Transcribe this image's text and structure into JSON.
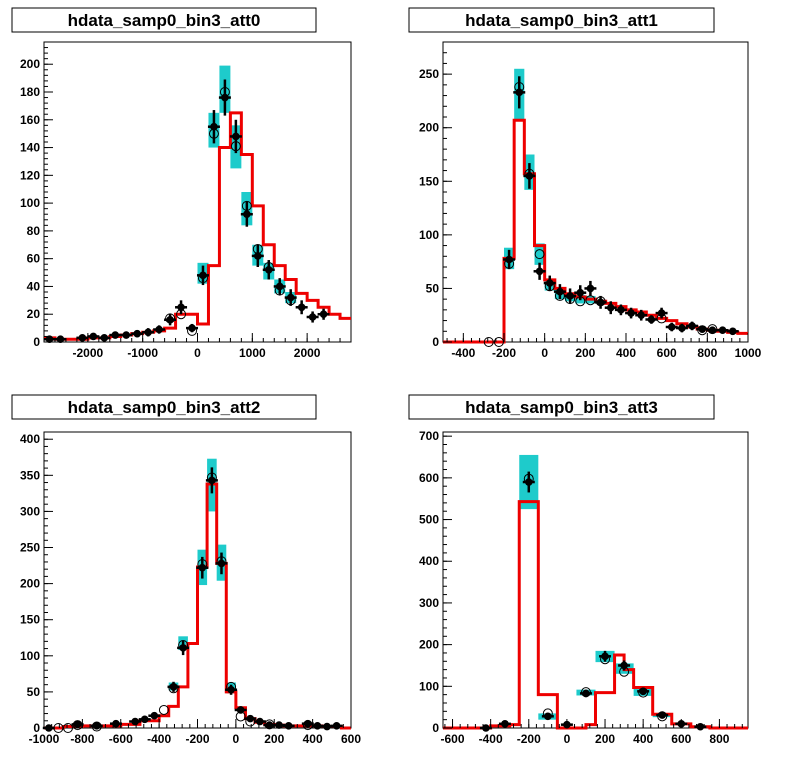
{
  "colors": {
    "band": "#1ecbcb",
    "model": "#ee0000",
    "data": "#000000",
    "frame": "#000000"
  },
  "chart_data": [
    {
      "type": "histogram",
      "title": "hdata_samp0_bin3_att0",
      "xlim": [
        -2800,
        2800
      ],
      "ylim": [
        0,
        216
      ],
      "xticks": [
        -2000,
        -1000,
        0,
        1000,
        2000
      ],
      "yticks": [
        0,
        20,
        40,
        60,
        80,
        100,
        120,
        140,
        160,
        180,
        200
      ],
      "model_edges": [
        -2800,
        -2600,
        -2400,
        -2200,
        -2000,
        -1800,
        -1600,
        -1400,
        -1200,
        -1000,
        -800,
        -600,
        -400,
        -200,
        0,
        200,
        400,
        600,
        800,
        1000,
        1200,
        1400,
        1600,
        1800,
        2000,
        2200,
        2400,
        2600,
        2800
      ],
      "model": [
        3,
        2,
        2,
        2,
        3,
        3,
        4,
        5,
        6,
        7,
        8,
        10,
        20,
        20,
        13,
        55,
        140,
        165,
        135,
        98,
        70,
        55,
        45,
        35,
        30,
        25,
        20,
        17
      ],
      "points": [
        {
          "x": -2700,
          "y": 2,
          "err": 1.5
        },
        {
          "x": -2500,
          "y": 2,
          "err": 1.5
        },
        {
          "x": -2100,
          "y": 3,
          "err": 1.5
        },
        {
          "x": -1900,
          "y": 4,
          "err": 2
        },
        {
          "x": -1700,
          "y": 3,
          "err": 2
        },
        {
          "x": -1500,
          "y": 5,
          "err": 2
        },
        {
          "x": -1300,
          "y": 5,
          "err": 2
        },
        {
          "x": -1100,
          "y": 6,
          "err": 2.5
        },
        {
          "x": -900,
          "y": 7,
          "err": 3
        },
        {
          "x": -700,
          "y": 9,
          "err": 3
        },
        {
          "x": -500,
          "y": 16,
          "err": 4
        },
        {
          "x": -300,
          "y": 25,
          "err": 5
        },
        {
          "x": -100,
          "y": 10,
          "err": 3
        },
        {
          "x": 100,
          "y": 48,
          "err": 7
        },
        {
          "x": 300,
          "y": 155,
          "err": 12
        },
        {
          "x": 500,
          "y": 176,
          "err": 13
        },
        {
          "x": 700,
          "y": 148,
          "err": 12
        },
        {
          "x": 900,
          "y": 92,
          "err": 9
        },
        {
          "x": 1100,
          "y": 62,
          "err": 8
        },
        {
          "x": 1300,
          "y": 52,
          "err": 7
        },
        {
          "x": 1500,
          "y": 40,
          "err": 6
        },
        {
          "x": 1700,
          "y": 32,
          "err": 6
        },
        {
          "x": 1900,
          "y": 25,
          "err": 5
        },
        {
          "x": 2100,
          "y": 18,
          "err": 4
        },
        {
          "x": 2300,
          "y": 20,
          "err": 4
        }
      ],
      "open_points": [
        {
          "x": -500,
          "y": 17
        },
        {
          "x": -300,
          "y": 20
        },
        {
          "x": -100,
          "y": 8
        },
        {
          "x": 100,
          "y": 46
        },
        {
          "x": 300,
          "y": 150
        },
        {
          "x": 500,
          "y": 180
        },
        {
          "x": 700,
          "y": 141
        },
        {
          "x": 900,
          "y": 98
        },
        {
          "x": 1100,
          "y": 67
        },
        {
          "x": 1300,
          "y": 54
        },
        {
          "x": 1500,
          "y": 37
        },
        {
          "x": 1700,
          "y": 30
        }
      ],
      "bands": [
        {
          "x0": 0,
          "x1": 200,
          "y0": 42,
          "y1": 57
        },
        {
          "x0": 200,
          "y0": 140,
          "x1": 400,
          "y1": 165
        },
        {
          "x0": 400,
          "x1": 600,
          "y0": 165,
          "y1": 199
        },
        {
          "x0": 600,
          "x1": 800,
          "y0": 125,
          "y1": 156
        },
        {
          "x0": 800,
          "x1": 1000,
          "y0": 84,
          "y1": 108
        },
        {
          "x0": 1000,
          "x1": 1200,
          "y0": 55,
          "y1": 70
        },
        {
          "x0": 1200,
          "x1": 1400,
          "y0": 45,
          "y1": 57
        },
        {
          "x0": 1400,
          "x1": 1600,
          "y0": 35,
          "y1": 45
        },
        {
          "x0": 1600,
          "x1": 1800,
          "y0": 28,
          "y1": 36
        }
      ]
    },
    {
      "type": "histogram",
      "title": "hdata_samp0_bin3_att1",
      "xlim": [
        -500,
        1000
      ],
      "ylim": [
        0,
        280
      ],
      "xticks": [
        -400,
        -200,
        0,
        200,
        400,
        600,
        800,
        1000
      ],
      "yticks": [
        0,
        50,
        100,
        150,
        200,
        250
      ],
      "model_edges": [
        -500,
        -200,
        -150,
        -100,
        -50,
        0,
        50,
        100,
        150,
        200,
        250,
        300,
        350,
        400,
        450,
        500,
        550,
        600,
        650,
        700,
        750,
        800,
        850,
        900,
        950,
        1000
      ],
      "model": [
        0,
        78,
        207,
        157,
        90,
        58,
        50,
        45,
        42,
        40,
        38,
        36,
        33,
        30,
        28,
        25,
        22,
        20,
        17,
        14,
        12,
        11,
        10,
        9,
        8
      ],
      "points": [
        {
          "x": -175,
          "y": 77,
          "err": 9
        },
        {
          "x": -125,
          "y": 233,
          "err": 15
        },
        {
          "x": -75,
          "y": 155,
          "err": 12
        },
        {
          "x": -25,
          "y": 66,
          "err": 8
        },
        {
          "x": 25,
          "y": 55,
          "err": 7
        },
        {
          "x": 75,
          "y": 47,
          "err": 7
        },
        {
          "x": 125,
          "y": 43,
          "err": 7
        },
        {
          "x": 175,
          "y": 46,
          "err": 7
        },
        {
          "x": 225,
          "y": 50,
          "err": 7
        },
        {
          "x": 275,
          "y": 37,
          "err": 6
        },
        {
          "x": 325,
          "y": 32,
          "err": 6
        },
        {
          "x": 375,
          "y": 30,
          "err": 5
        },
        {
          "x": 425,
          "y": 27,
          "err": 5
        },
        {
          "x": 475,
          "y": 25,
          "err": 5
        },
        {
          "x": 525,
          "y": 21,
          "err": 4
        },
        {
          "x": 575,
          "y": 27,
          "err": 5
        },
        {
          "x": 625,
          "y": 14,
          "err": 4
        },
        {
          "x": 675,
          "y": 13,
          "err": 4
        },
        {
          "x": 725,
          "y": 15,
          "err": 4
        },
        {
          "x": 775,
          "y": 12,
          "err": 3
        },
        {
          "x": 825,
          "y": 11,
          "err": 3
        },
        {
          "x": 875,
          "y": 11,
          "err": 3
        },
        {
          "x": 925,
          "y": 10,
          "err": 3
        }
      ],
      "open_points": [
        {
          "x": -275,
          "y": 0
        },
        {
          "x": -225,
          "y": 0
        },
        {
          "x": -175,
          "y": 73
        },
        {
          "x": -125,
          "y": 238
        },
        {
          "x": -75,
          "y": 157
        },
        {
          "x": -25,
          "y": 82
        },
        {
          "x": 25,
          "y": 52
        },
        {
          "x": 75,
          "y": 43
        },
        {
          "x": 125,
          "y": 40
        },
        {
          "x": 175,
          "y": 38
        },
        {
          "x": 225,
          "y": 39
        },
        {
          "x": 275,
          "y": 38
        },
        {
          "x": 575,
          "y": 22
        },
        {
          "x": 775,
          "y": 11
        },
        {
          "x": 825,
          "y": 12
        }
      ],
      "bands": [
        {
          "x0": -200,
          "x1": -150,
          "y0": 68,
          "y1": 88
        },
        {
          "x0": -150,
          "x1": -100,
          "y0": 208,
          "y1": 255
        },
        {
          "x0": -100,
          "x1": -50,
          "y0": 142,
          "y1": 175
        },
        {
          "x0": -50,
          "x1": 0,
          "y0": 72,
          "y1": 92
        },
        {
          "x0": 0,
          "x1": 50,
          "y0": 48,
          "y1": 58
        },
        {
          "x0": 50,
          "x1": 100,
          "y0": 40,
          "y1": 50
        },
        {
          "x0": 100,
          "x1": 150,
          "y0": 38,
          "y1": 46
        },
        {
          "x0": 150,
          "x1": 200,
          "y0": 36,
          "y1": 44
        },
        {
          "x0": 200,
          "x1": 250,
          "y0": 36,
          "y1": 43
        }
      ]
    },
    {
      "type": "histogram",
      "title": "hdata_samp0_bin3_att2",
      "xlim": [
        -1000,
        600
      ],
      "ylim": [
        0,
        410
      ],
      "xticks": [
        -1000,
        -800,
        -600,
        -400,
        -200,
        0,
        200,
        400,
        600
      ],
      "yticks": [
        0,
        50,
        100,
        150,
        200,
        250,
        300,
        350,
        400
      ],
      "model_edges": [
        -1000,
        -900,
        -800,
        -700,
        -600,
        -500,
        -400,
        -350,
        -300,
        -250,
        -200,
        -150,
        -100,
        -50,
        0,
        50,
        100,
        150,
        200,
        250,
        300,
        350,
        400,
        450,
        500,
        550,
        600
      ],
      "model": [
        0,
        2,
        3,
        3,
        5,
        10,
        17,
        30,
        57,
        117,
        223,
        338,
        228,
        50,
        28,
        13,
        8,
        5,
        4,
        3,
        3,
        3,
        3,
        2,
        2,
        0
      ],
      "points": [
        {
          "x": -975,
          "y": 0,
          "err": 2
        },
        {
          "x": -825,
          "y": 5,
          "err": 3
        },
        {
          "x": -725,
          "y": 3,
          "err": 2
        },
        {
          "x": -625,
          "y": 6,
          "err": 3
        },
        {
          "x": -525,
          "y": 9,
          "err": 3
        },
        {
          "x": -475,
          "y": 12,
          "err": 3
        },
        {
          "x": -425,
          "y": 17,
          "err": 4
        },
        {
          "x": -325,
          "y": 57,
          "err": 7
        },
        {
          "x": -275,
          "y": 111,
          "err": 10
        },
        {
          "x": -175,
          "y": 222,
          "err": 15
        },
        {
          "x": -125,
          "y": 343,
          "err": 18
        },
        {
          "x": -75,
          "y": 228,
          "err": 15
        },
        {
          "x": -25,
          "y": 53,
          "err": 7
        },
        {
          "x": 25,
          "y": 25,
          "err": 5
        },
        {
          "x": 75,
          "y": 13,
          "err": 4
        },
        {
          "x": 125,
          "y": 9,
          "err": 3
        },
        {
          "x": 175,
          "y": 4,
          "err": 2
        },
        {
          "x": 225,
          "y": 4,
          "err": 2
        },
        {
          "x": 275,
          "y": 3,
          "err": 2
        },
        {
          "x": 375,
          "y": 6,
          "err": 2
        },
        {
          "x": 425,
          "y": 3,
          "err": 2
        },
        {
          "x": 475,
          "y": 2,
          "err": 2
        },
        {
          "x": 525,
          "y": 3,
          "err": 2
        }
      ],
      "open_points": [
        {
          "x": -925,
          "y": 0
        },
        {
          "x": -875,
          "y": 0
        },
        {
          "x": -825,
          "y": 4
        },
        {
          "x": -725,
          "y": 2
        },
        {
          "x": -375,
          "y": 25
        },
        {
          "x": -325,
          "y": 55
        },
        {
          "x": -275,
          "y": 115
        },
        {
          "x": -175,
          "y": 227
        },
        {
          "x": -125,
          "y": 347
        },
        {
          "x": -75,
          "y": 231
        },
        {
          "x": -25,
          "y": 57
        },
        {
          "x": 25,
          "y": 16
        },
        {
          "x": 75,
          "y": 9
        },
        {
          "x": 175,
          "y": 5
        },
        {
          "x": 375,
          "y": 4
        }
      ],
      "bands": [
        {
          "x0": -350,
          "x1": -300,
          "y0": 52,
          "y1": 63
        },
        {
          "x0": -300,
          "x1": -250,
          "y0": 108,
          "y1": 127
        },
        {
          "x0": -200,
          "x1": -150,
          "y0": 198,
          "y1": 247
        },
        {
          "x0": -150,
          "x1": -100,
          "y0": 300,
          "y1": 373
        },
        {
          "x0": -100,
          "x1": -50,
          "y0": 204,
          "y1": 254
        },
        {
          "x0": -50,
          "x1": 0,
          "y0": 48,
          "y1": 63
        }
      ]
    },
    {
      "type": "histogram",
      "title": "hdata_samp0_bin3_att3",
      "xlim": [
        -650,
        950
      ],
      "ylim": [
        0,
        710
      ],
      "xticks": [
        -600,
        -400,
        -200,
        0,
        200,
        400,
        600,
        800
      ],
      "yticks": [
        0,
        100,
        200,
        300,
        400,
        500,
        600,
        700
      ],
      "model_edges": [
        -650,
        -400,
        -300,
        -250,
        -150,
        -50,
        50,
        100,
        150,
        250,
        300,
        350,
        450,
        550,
        650,
        750,
        950
      ],
      "model": [
        0,
        5,
        8,
        543,
        80,
        0,
        0,
        8,
        85,
        175,
        140,
        97,
        33,
        10,
        3,
        0
      ],
      "points": [
        {
          "x": -425,
          "y": 0,
          "err": 3
        },
        {
          "x": -325,
          "y": 10,
          "err": 5
        },
        {
          "x": -200,
          "y": 590,
          "err": 25
        },
        {
          "x": -100,
          "y": 28,
          "err": 6
        },
        {
          "x": 0,
          "y": 8,
          "err": 3
        },
        {
          "x": 100,
          "y": 83,
          "err": 9
        },
        {
          "x": 200,
          "y": 172,
          "err": 13
        },
        {
          "x": 300,
          "y": 150,
          "err": 12
        },
        {
          "x": 400,
          "y": 88,
          "err": 9
        },
        {
          "x": 500,
          "y": 31,
          "err": 6
        },
        {
          "x": 600,
          "y": 10,
          "err": 3
        },
        {
          "x": 700,
          "y": 3,
          "err": 2
        }
      ],
      "open_points": [
        {
          "x": -200,
          "y": 598
        },
        {
          "x": -100,
          "y": 35
        },
        {
          "x": 100,
          "y": 86
        },
        {
          "x": 200,
          "y": 165
        },
        {
          "x": 300,
          "y": 135
        },
        {
          "x": 400,
          "y": 85
        },
        {
          "x": 500,
          "y": 28
        }
      ],
      "bands": [
        {
          "x0": -250,
          "x1": -150,
          "y0": 525,
          "y1": 655
        },
        {
          "x0": -150,
          "x1": -50,
          "y0": 20,
          "y1": 35
        },
        {
          "x0": 50,
          "x1": 150,
          "y0": 78,
          "y1": 92
        },
        {
          "x0": 150,
          "x1": 250,
          "y0": 158,
          "y1": 185
        },
        {
          "x0": 250,
          "x1": 350,
          "y0": 130,
          "y1": 155
        },
        {
          "x0": 350,
          "x1": 450,
          "y0": 77,
          "y1": 100
        },
        {
          "x0": 450,
          "x1": 550,
          "y0": 26,
          "y1": 36
        }
      ]
    }
  ]
}
